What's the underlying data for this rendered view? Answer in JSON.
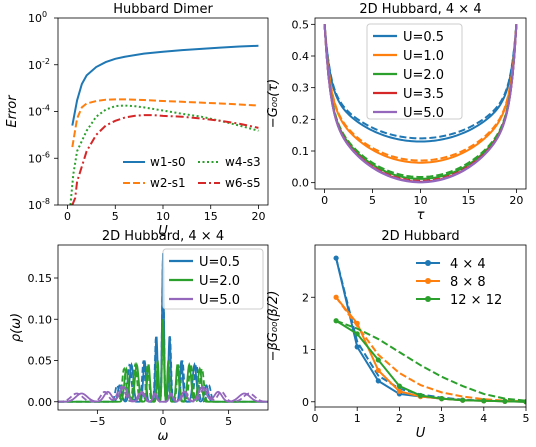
{
  "chart_data": [
    {
      "type": "line",
      "title": "Hubbard Dimer",
      "xlabel": "U",
      "ylabel": "Error",
      "xlim": [
        -1,
        21
      ],
      "ylim_log10": [
        -8,
        0
      ],
      "yscale": "log",
      "xticks": [
        0,
        5,
        10,
        15,
        20
      ],
      "xtick_labels": [
        "0",
        "5",
        "10",
        "15",
        "20"
      ],
      "yticks_log10": [
        -8,
        -6,
        -4,
        -2,
        0
      ],
      "ytick_labels": [
        "10",
        "10",
        "10",
        "10",
        "10"
      ],
      "ytick_exponents": [
        "-8",
        "-6",
        "-4",
        "-2",
        "0"
      ],
      "legend_position": "lower-right",
      "legend_columns": 2,
      "series": [
        {
          "name": "w1-s0",
          "color": "#1f77b4",
          "style": "solid",
          "x": [
            0.5,
            1,
            1.5,
            2,
            3,
            4,
            5,
            6,
            8,
            10,
            12,
            14,
            16,
            18,
            20
          ],
          "y": [
            2.5e-05,
            0.0003,
            0.0015,
            0.0035,
            0.008,
            0.013,
            0.018,
            0.022,
            0.03,
            0.036,
            0.042,
            0.048,
            0.054,
            0.06,
            0.065
          ]
        },
        {
          "name": "w2-s1",
          "color": "#ff7f0e",
          "style": "dashed",
          "x": [
            0.5,
            1,
            1.5,
            2,
            3,
            4,
            5,
            6,
            8,
            10,
            12,
            14,
            16,
            18,
            20
          ],
          "y": [
            3e-06,
            5e-05,
            0.00015,
            0.00022,
            0.00028,
            0.00032,
            0.00033,
            0.00033,
            0.00031,
            0.00028,
            0.00026,
            0.00024,
            0.00022,
            0.0002,
            0.00018
          ]
        },
        {
          "name": "w4-s3",
          "color": "#2ca02c",
          "style": "dotted",
          "x": [
            0.3,
            0.6,
            1,
            2,
            3,
            4,
            5,
            6,
            7,
            8,
            10,
            12,
            14,
            16,
            18,
            20
          ],
          "y": [
            1e-08,
            2e-07,
            2e-06,
            1.5e-05,
            6e-05,
            0.00012,
            0.00017,
            0.00018,
            0.00017,
            0.00015,
            0.00011,
            8e-05,
            6e-05,
            4e-05,
            2.5e-05,
            1.5e-05
          ]
        },
        {
          "name": "w6-s5",
          "color": "#d62728",
          "style": "dashdot",
          "x": [
            0.5,
            0.8,
            1,
            2,
            3,
            4,
            5,
            6,
            7,
            8,
            9,
            10,
            12,
            14,
            16,
            18,
            20
          ],
          "y": [
            1e-08,
            2e-08,
            1e-07,
            2e-06,
            1e-05,
            2.5e-05,
            4e-05,
            5.5e-05,
            6.5e-05,
            7e-05,
            7e-05,
            6.5e-05,
            6e-05,
            5e-05,
            4e-05,
            3e-05,
            2e-05
          ]
        }
      ]
    },
    {
      "type": "line",
      "title": "2D Hubbard, 4 × 4",
      "xlabel": "τ",
      "ylabel": "−G₀₀(τ)",
      "xlim": [
        -1,
        21
      ],
      "ylim": [
        -0.02,
        0.52
      ],
      "xticks": [
        0,
        5,
        10,
        15,
        20
      ],
      "xtick_labels": [
        "0",
        "5",
        "10",
        "15",
        "20"
      ],
      "yticks": [
        0.0,
        0.1,
        0.2,
        0.3,
        0.4,
        0.5
      ],
      "ytick_labels": [
        "0.0",
        "0.1",
        "0.2",
        "0.3",
        "0.4",
        "0.5"
      ],
      "legend_position": "top-center",
      "series": [
        {
          "name": "U=0.5",
          "color": "#1f77b4",
          "min": 0.13,
          "min_dashed": 0.14
        },
        {
          "name": "U=1.0",
          "color": "#ff7f0e",
          "min": 0.063,
          "min_dashed": 0.07
        },
        {
          "name": "U=2.0",
          "color": "#2ca02c",
          "min": 0.012,
          "min_dashed": 0.018
        },
        {
          "name": "U=3.5",
          "color": "#d62728",
          "min": 0.003,
          "min_dashed": 0.006
        },
        {
          "name": "U=5.0",
          "color": "#9467bd",
          "min": 0.001,
          "min_dashed": 0.003
        }
      ]
    },
    {
      "type": "line",
      "title": "2D Hubbard, 4 × 4",
      "xlabel": "ω",
      "ylabel": "ρ(ω)",
      "xlim": [
        -8,
        8
      ],
      "ylim": [
        -0.01,
        0.19
      ],
      "xticks": [
        -5,
        0,
        5
      ],
      "xtick_labels": [
        "−5",
        "0",
        "5"
      ],
      "yticks": [
        0.0,
        0.05,
        0.1,
        0.15
      ],
      "ytick_labels": [
        "0.00",
        "0.05",
        "0.10",
        "0.15"
      ],
      "legend_position": "top-right",
      "series": [
        {
          "name": "U=0.5",
          "color": "#1f77b4",
          "peaks": [
            [
              0,
              0.18,
              0.1
            ],
            [
              -0.5,
              0.08,
              0.12
            ],
            [
              0.5,
              0.08,
              0.12
            ],
            [
              -1.4,
              0.05,
              0.15
            ],
            [
              1.4,
              0.05,
              0.15
            ],
            [
              -2.4,
              0.045,
              0.2
            ],
            [
              2.4,
              0.045,
              0.2
            ],
            [
              -3.3,
              0.02,
              0.2
            ],
            [
              3.3,
              0.02,
              0.2
            ]
          ]
        },
        {
          "name": "U=2.0",
          "color": "#2ca02c",
          "peaks": [
            [
              0,
              0.1,
              0.1
            ],
            [
              -0.4,
              0.05,
              0.1
            ],
            [
              0.4,
              0.05,
              0.1
            ],
            [
              -1.1,
              0.045,
              0.15
            ],
            [
              1.1,
              0.045,
              0.15
            ],
            [
              -2.0,
              0.045,
              0.2
            ],
            [
              2.0,
              0.045,
              0.2
            ],
            [
              -2.8,
              0.04,
              0.2
            ],
            [
              2.8,
              0.04,
              0.2
            ]
          ]
        },
        {
          "name": "U=5.0",
          "color": "#9467bd",
          "peaks": [
            [
              -0.6,
              0.01,
              0.2
            ],
            [
              0.6,
              0.01,
              0.2
            ],
            [
              -1.6,
              0.012,
              0.3
            ],
            [
              1.6,
              0.012,
              0.3
            ],
            [
              -3.0,
              0.018,
              0.4
            ],
            [
              3.0,
              0.018,
              0.4
            ],
            [
              -4.2,
              0.012,
              0.4
            ],
            [
              4.2,
              0.012,
              0.4
            ],
            [
              -6.2,
              0.01,
              0.6
            ],
            [
              6.2,
              0.01,
              0.6
            ]
          ]
        }
      ]
    },
    {
      "type": "line",
      "title": "2D Hubbard",
      "xlabel": "U",
      "ylabel": "−βG₀₀(β/2)",
      "xlim": [
        0,
        5
      ],
      "ylim": [
        -0.1,
        3.0
      ],
      "xticks": [
        0,
        1,
        2,
        3,
        4,
        5
      ],
      "xtick_labels": [
        "0",
        "1",
        "2",
        "3",
        "4",
        "5"
      ],
      "yticks": [
        0,
        1,
        2
      ],
      "ytick_labels": [
        "0",
        "1",
        "2"
      ],
      "legend_position": "top-right",
      "series": [
        {
          "name": "4 × 4",
          "color": "#1f77b4",
          "x": [
            0.5,
            1.0,
            1.5,
            2.0,
            2.5,
            3.0,
            3.5,
            4.0,
            4.5,
            5.0
          ],
          "y": [
            2.75,
            1.05,
            0.4,
            0.15,
            0.1,
            0.06,
            0.03,
            0.02,
            0.01,
            0.0
          ],
          "x_dashed": [
            0.5,
            1.0,
            1.5,
            2.0,
            2.5,
            3.0,
            3.5,
            4.0,
            4.5,
            5.0
          ],
          "y_dashed": [
            2.75,
            1.15,
            0.5,
            0.25,
            0.14,
            0.08,
            0.04,
            0.02,
            0.01,
            0.0
          ]
        },
        {
          "name": "8 × 8",
          "color": "#ff7f0e",
          "x": [
            0.5,
            1.0,
            1.5,
            2.0,
            2.5,
            3.0,
            3.5,
            4.0,
            4.5,
            5.0
          ],
          "y": [
            2.0,
            1.5,
            0.6,
            0.2,
            0.1,
            0.06,
            0.03,
            0.02,
            0.01,
            0.0
          ],
          "x_dashed": [
            0.5,
            1.0,
            1.5,
            2.0,
            2.5,
            3.0,
            3.5,
            4.0,
            4.5,
            5.0
          ],
          "y_dashed": [
            2.0,
            1.45,
            0.9,
            0.55,
            0.32,
            0.18,
            0.1,
            0.05,
            0.02,
            0.01
          ]
        },
        {
          "name": "12 × 12",
          "color": "#2ca02c",
          "x": [
            0.5,
            1.0,
            1.5,
            2.0,
            2.5,
            3.0,
            3.5,
            4.0,
            4.5,
            5.0
          ],
          "y": [
            1.55,
            1.3,
            0.8,
            0.3,
            0.12,
            0.06,
            0.03,
            0.02,
            0.01,
            0.0
          ],
          "x_dashed": [
            0.5,
            1.0,
            1.5,
            2.0,
            2.5,
            3.0,
            3.5,
            4.0,
            4.5,
            5.0
          ],
          "y_dashed": [
            1.55,
            1.4,
            1.2,
            0.95,
            0.7,
            0.48,
            0.3,
            0.15,
            0.06,
            0.02
          ]
        }
      ]
    }
  ]
}
